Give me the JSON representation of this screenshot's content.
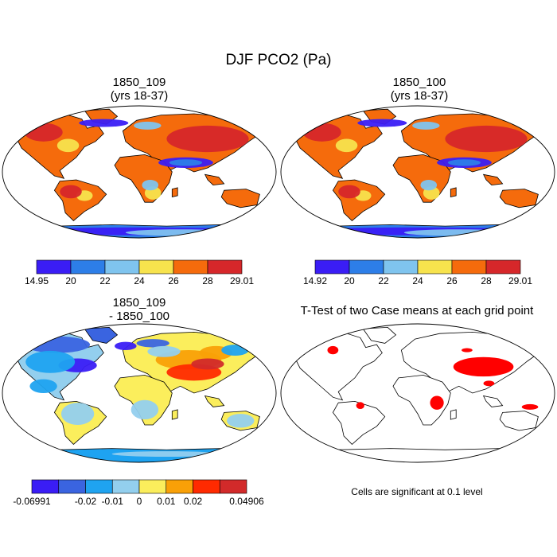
{
  "title": "DJF PCO2 (Pa)",
  "colors": {
    "ocean": "#ffffff",
    "coast": "#000000",
    "sig": "#ff0000"
  },
  "chart_data": [
    {
      "type": "heatmap",
      "title_line1": "1850_109",
      "title_line2": "(yrs 18-37)",
      "colorbar": {
        "min_label": "14.95",
        "max_label": "29.01",
        "tick_labels": [
          "20",
          "22",
          "24",
          "26",
          "28"
        ],
        "colors": [
          "#3a1df5",
          "#2d7ee8",
          "#7fc4ee",
          "#f7e34d",
          "#f56b0c",
          "#d6272a"
        ]
      }
    },
    {
      "type": "heatmap",
      "title_line1": "1850_100",
      "title_line2": "(yrs 18-37)",
      "colorbar": {
        "min_label": "14.92",
        "max_label": "29.01",
        "tick_labels": [
          "20",
          "22",
          "24",
          "26",
          "28"
        ],
        "colors": [
          "#3a1df5",
          "#2d7ee8",
          "#7fc4ee",
          "#f7e34d",
          "#f56b0c",
          "#d6272a"
        ]
      }
    },
    {
      "type": "heatmap",
      "title_line1": "1850_109",
      "title_line2": "- 1850_100",
      "colorbar": {
        "min_label": "-0.06991",
        "max_label": "0.04906",
        "tick_labels": [
          "-0.02",
          "-0.01",
          "0",
          "0.01",
          "0.02"
        ],
        "colors": [
          "#3a1df5",
          "#3a64e0",
          "#1fa3f0",
          "#93cfee",
          "#fbee5c",
          "#f9a007",
          "#ff2a00",
          "#d22a2a"
        ]
      }
    },
    {
      "type": "heatmap",
      "title_line1": "T-Test of two Case means at each grid point",
      "note": "Cells are significant at 0.1 level"
    }
  ]
}
